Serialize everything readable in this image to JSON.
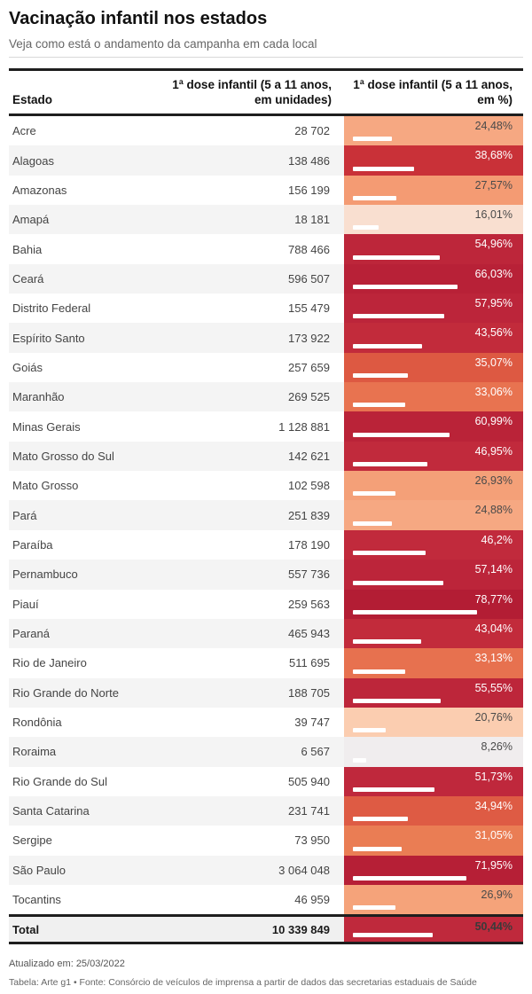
{
  "header": {
    "title": "Vacinação infantil nos estados",
    "subtitle": "Veja como está o andamento da campanha em cada local"
  },
  "table": {
    "columns": {
      "state": "Estado",
      "units_line1": "1ª dose infantil (5 a 11 anos,",
      "units_line2": "em unidades)",
      "pct_line1": "1ª dose infantil (5 a 11 anos,",
      "pct_line2": "em %)"
    }
  },
  "chart_data": {
    "type": "table",
    "note": "Third column is a heat-colored cell with a white bar whose length maps 0-100% to the cell width",
    "bar_scale_max": 100,
    "columns": [
      "Estado",
      "1ª dose infantil (5 a 11 anos, em unidades)",
      "1ª dose infantil (5 a 11 anos, em %)"
    ],
    "rows": [
      {
        "state": "Acre",
        "units": "28 702",
        "pct_label": "24,48%",
        "pct": 24.48,
        "color": "#F6A882",
        "text": "dark"
      },
      {
        "state": "Alagoas",
        "units": "138 486",
        "pct_label": "38,68%",
        "pct": 38.68,
        "color": "#C93138",
        "text": "light"
      },
      {
        "state": "Amazonas",
        "units": "156 199",
        "pct_label": "27,57%",
        "pct": 27.57,
        "color": "#F49B73",
        "text": "dark"
      },
      {
        "state": "Amapá",
        "units": "18 181",
        "pct_label": "16,01%",
        "pct": 16.01,
        "color": "#F9DFD0",
        "text": "dark"
      },
      {
        "state": "Bahia",
        "units": "788 466",
        "pct_label": "54,96%",
        "pct": 54.96,
        "color": "#BD263A",
        "text": "light"
      },
      {
        "state": "Ceará",
        "units": "596 507",
        "pct_label": "66,03%",
        "pct": 66.03,
        "color": "#B82137",
        "text": "light"
      },
      {
        "state": "Distrito Federal",
        "units": "155 479",
        "pct_label": "57,95%",
        "pct": 57.95,
        "color": "#BC253A",
        "text": "light"
      },
      {
        "state": "Espírito Santo",
        "units": "173 922",
        "pct_label": "43,56%",
        "pct": 43.56,
        "color": "#C22B3B",
        "text": "light"
      },
      {
        "state": "Goiás",
        "units": "257 659",
        "pct_label": "35,07%",
        "pct": 35.07,
        "color": "#DD5942",
        "text": "light"
      },
      {
        "state": "Maranhão",
        "units": "269 525",
        "pct_label": "33,06%",
        "pct": 33.06,
        "color": "#E87350",
        "text": "light"
      },
      {
        "state": "Minas Gerais",
        "units": "1 128 881",
        "pct_label": "60,99%",
        "pct": 60.99,
        "color": "#BA2338",
        "text": "light"
      },
      {
        "state": "Mato Grosso do Sul",
        "units": "142 621",
        "pct_label": "46,95%",
        "pct": 46.95,
        "color": "#C12A3C",
        "text": "light"
      },
      {
        "state": "Mato Grosso",
        "units": "102 598",
        "pct_label": "26,93%",
        "pct": 26.93,
        "color": "#F4A078",
        "text": "dark"
      },
      {
        "state": "Pará",
        "units": "251 839",
        "pct_label": "24,88%",
        "pct": 24.88,
        "color": "#F6A882",
        "text": "dark"
      },
      {
        "state": "Paraíba",
        "units": "178 190",
        "pct_label": "46,2%",
        "pct": 46.2,
        "color": "#C12A3C",
        "text": "light"
      },
      {
        "state": "Pernambuco",
        "units": "557 736",
        "pct_label": "57,14%",
        "pct": 57.14,
        "color": "#BC253A",
        "text": "light"
      },
      {
        "state": "Piauí",
        "units": "259 563",
        "pct_label": "78,77%",
        "pct": 78.77,
        "color": "#B31D34",
        "text": "light"
      },
      {
        "state": "Paraná",
        "units": "465 943",
        "pct_label": "43,04%",
        "pct": 43.04,
        "color": "#C22B3B",
        "text": "light"
      },
      {
        "state": "Rio de Janeiro",
        "units": "511 695",
        "pct_label": "33,13%",
        "pct": 33.13,
        "color": "#E7714F",
        "text": "light"
      },
      {
        "state": "Rio Grande do Norte",
        "units": "188 705",
        "pct_label": "55,55%",
        "pct": 55.55,
        "color": "#BD263A",
        "text": "light"
      },
      {
        "state": "Rondônia",
        "units": "39 747",
        "pct_label": "20,76%",
        "pct": 20.76,
        "color": "#FBCDB0",
        "text": "dark"
      },
      {
        "state": "Roraima",
        "units": "6 567",
        "pct_label": "8,26%",
        "pct": 8.26,
        "color": "#F0EDEE",
        "text": "dark"
      },
      {
        "state": "Rio Grande do Sul",
        "units": "505 940",
        "pct_label": "51,73%",
        "pct": 51.73,
        "color": "#BF283C",
        "text": "light"
      },
      {
        "state": "Santa Catarina",
        "units": "231 741",
        "pct_label": "34,94%",
        "pct": 34.94,
        "color": "#DE5B44",
        "text": "light"
      },
      {
        "state": "Sergipe",
        "units": "73 950",
        "pct_label": "31,05%",
        "pct": 31.05,
        "color": "#EA7D54",
        "text": "light"
      },
      {
        "state": "São Paulo",
        "units": "3 064 048",
        "pct_label": "71,95%",
        "pct": 71.95,
        "color": "#B61F36",
        "text": "light"
      },
      {
        "state": "Tocantins",
        "units": "46 959",
        "pct_label": "26,9%",
        "pct": 26.9,
        "color": "#F5A37A",
        "text": "dark"
      }
    ],
    "total": {
      "state": "Total",
      "units": "10 339 849",
      "pct_label": "50,44%",
      "pct": 50.44,
      "color": "#BF293C",
      "text": "dark"
    }
  },
  "footer": {
    "updated": "Atualizado em: 25/03/2022",
    "credit": "Tabela: Arte g1 • Fonte: Consórcio de veículos de imprensa a partir de dados das secretarias estaduais de Saúde"
  }
}
